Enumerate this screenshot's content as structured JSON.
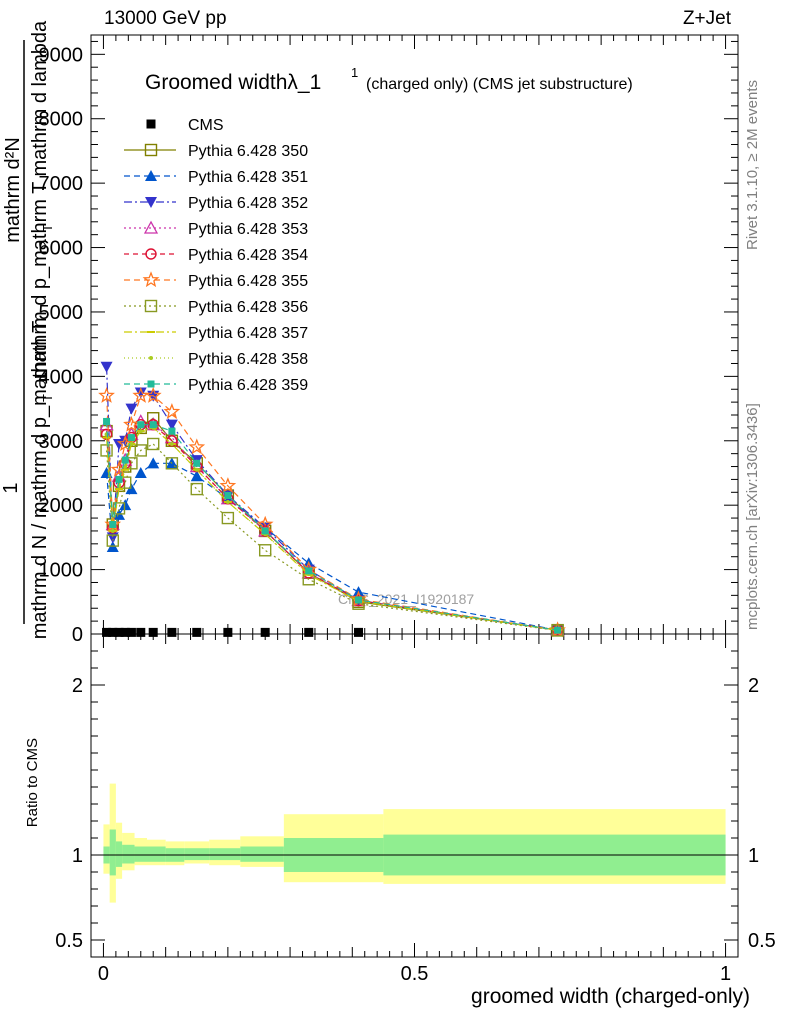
{
  "header": {
    "left": "13000 GeV pp",
    "right": "Z+Jet"
  },
  "side_labels": {
    "rivet": "Rivet 3.1.10, ≥ 2M events",
    "mcplots": "mcplots.cern.ch [arXiv:1306.3436]"
  },
  "colors": {
    "band_inner": "#90ee90",
    "band_outer": "#ffff99",
    "axis": "#000000"
  },
  "chart_data": [
    {
      "type": "line",
      "title": "Groomed widthλ_1",
      "title_sup": "1",
      "title_suffix": "(charged only) (CMS jet substructure)",
      "watermark": "CMS_2021_I1920187",
      "xlabel": "",
      "ylabel": {
        "top": "mathrm d²N",
        "top_right": "mathrm d p_mathrm T mathrm d lambda",
        "top_sub": "T",
        "bottom": "1",
        "bottom_right": "mathrm d N / mathrm d p_mathrm T",
        "bottom_sub": "T"
      },
      "xlim": [
        -0.02,
        1.02
      ],
      "ylim": [
        0,
        9300
      ],
      "yticks": [
        0,
        1000,
        2000,
        3000,
        4000,
        5000,
        6000,
        7000,
        8000,
        9000
      ],
      "ytick_labels": [
        "0",
        "1000",
        "2000",
        "3000",
        "4000",
        "5000",
        "6000",
        "7000",
        "8000",
        "9000"
      ],
      "legend_position": "top-left",
      "series": [
        {
          "name": "CMS",
          "color": "#000000",
          "marker": "square-filled",
          "dash": "none",
          "x": [
            0.005,
            0.015,
            0.025,
            0.035,
            0.045,
            0.06,
            0.08,
            0.11,
            0.15,
            0.2,
            0.26,
            0.33,
            0.41
          ],
          "y": [
            25,
            25,
            25,
            25,
            25,
            25,
            25,
            25,
            25,
            25,
            25,
            25,
            25
          ]
        },
        {
          "name": "Pythia 6.428 350",
          "color": "#808000",
          "marker": "square-open",
          "dash": "solid",
          "x": [
            0.005,
            0.015,
            0.025,
            0.035,
            0.045,
            0.06,
            0.08,
            0.11,
            0.15,
            0.2,
            0.26,
            0.33,
            0.41,
            0.73
          ],
          "y": [
            3150,
            1700,
            2300,
            2600,
            3000,
            3200,
            3350,
            3000,
            2650,
            2150,
            1600,
            950,
            500,
            60
          ]
        },
        {
          "name": "Pythia 6.428 351",
          "color": "#0055cc",
          "marker": "triangle-up-filled",
          "dash": "6,4",
          "x": [
            0.005,
            0.015,
            0.025,
            0.035,
            0.045,
            0.06,
            0.08,
            0.11,
            0.15,
            0.2,
            0.26,
            0.33,
            0.41,
            0.73
          ],
          "y": [
            2500,
            1350,
            1850,
            2000,
            2250,
            2500,
            2650,
            2650,
            2450,
            2100,
            1650,
            1100,
            650,
            60
          ]
        },
        {
          "name": "Pythia 6.428 352",
          "color": "#3333cc",
          "marker": "triangle-down-filled",
          "dash": "8,3,2,3",
          "x": [
            0.005,
            0.015,
            0.025,
            0.035,
            0.045,
            0.06,
            0.08,
            0.11,
            0.15,
            0.2,
            0.26,
            0.33,
            0.41,
            0.73
          ],
          "y": [
            4150,
            1500,
            2950,
            3000,
            3500,
            3750,
            3700,
            3250,
            2700,
            2150,
            1650,
            1000,
            520,
            60
          ]
        },
        {
          "name": "Pythia 6.428 353",
          "color": "#cc33aa",
          "marker": "triangle-up-open",
          "dash": "2,3",
          "x": [
            0.005,
            0.015,
            0.025,
            0.035,
            0.045,
            0.06,
            0.08,
            0.11,
            0.15,
            0.2,
            0.26,
            0.33,
            0.41,
            0.73
          ],
          "y": [
            3250,
            1700,
            2450,
            2700,
            3100,
            3300,
            3250,
            3050,
            2600,
            2100,
            1600,
            950,
            520,
            60
          ]
        },
        {
          "name": "Pythia 6.428 354",
          "color": "#dd1133",
          "marker": "circle-open",
          "dash": "5,4",
          "x": [
            0.005,
            0.015,
            0.025,
            0.035,
            0.045,
            0.06,
            0.08,
            0.11,
            0.15,
            0.2,
            0.26,
            0.33,
            0.41,
            0.73
          ],
          "y": [
            3100,
            1650,
            2350,
            2650,
            3050,
            3250,
            3250,
            3000,
            2600,
            2100,
            1600,
            950,
            520,
            60
          ]
        },
        {
          "name": "Pythia 6.428 355",
          "color": "#ff7722",
          "marker": "star-open",
          "dash": "6,4",
          "x": [
            0.005,
            0.015,
            0.025,
            0.035,
            0.045,
            0.06,
            0.08,
            0.11,
            0.15,
            0.2,
            0.26,
            0.33,
            0.41,
            0.73
          ],
          "y": [
            3700,
            1700,
            2550,
            2950,
            3250,
            3700,
            3700,
            3450,
            2900,
            2300,
            1700,
            1000,
            540,
            60
          ]
        },
        {
          "name": "Pythia 6.428 356",
          "color": "#889922",
          "marker": "square-open",
          "dash": "2,3",
          "x": [
            0.005,
            0.015,
            0.025,
            0.035,
            0.045,
            0.06,
            0.08,
            0.11,
            0.15,
            0.2,
            0.26,
            0.33,
            0.41,
            0.73
          ],
          "y": [
            2850,
            1450,
            1950,
            2350,
            2650,
            2850,
            2950,
            2650,
            2250,
            1800,
            1300,
            850,
            470,
            55
          ]
        },
        {
          "name": "Pythia 6.428 357",
          "color": "#cccc00",
          "marker": "dash-marker",
          "dash": "8,3,2,3",
          "x": [
            0.005,
            0.015,
            0.025,
            0.035,
            0.045,
            0.06,
            0.08,
            0.11,
            0.15,
            0.2,
            0.26,
            0.33,
            0.41,
            0.73
          ],
          "y": [
            3050,
            1600,
            2250,
            2550,
            2950,
            3150,
            3200,
            2950,
            2550,
            2050,
            1550,
            920,
            510,
            60
          ]
        },
        {
          "name": "Pythia 6.428 358",
          "color": "#aacc22",
          "marker": "dot",
          "dash": "1,3",
          "x": [
            0.005,
            0.015,
            0.025,
            0.035,
            0.045,
            0.06,
            0.08,
            0.11,
            0.15,
            0.2,
            0.26,
            0.33,
            0.41,
            0.73
          ],
          "y": [
            3100,
            1600,
            2300,
            2600,
            2950,
            3150,
            3200,
            2950,
            2550,
            2050,
            1550,
            930,
            510,
            60
          ]
        },
        {
          "name": "Pythia 6.428 359",
          "color": "#22bb99",
          "marker": "square-filled-small",
          "dash": "6,4",
          "x": [
            0.005,
            0.015,
            0.025,
            0.035,
            0.045,
            0.06,
            0.08,
            0.11,
            0.15,
            0.2,
            0.26,
            0.33,
            0.41,
            0.73
          ],
          "y": [
            3300,
            1700,
            2400,
            2700,
            3050,
            3250,
            3250,
            3150,
            2650,
            2150,
            1600,
            980,
            530,
            60
          ]
        }
      ]
    },
    {
      "type": "area",
      "title": "",
      "xlabel": "groomed width (charged-only)",
      "ylabel": "Ratio to CMS",
      "xlim": [
        -0.02,
        1.02
      ],
      "ylim": [
        0.4,
        2.3
      ],
      "yticks": [
        0.5,
        1,
        2
      ],
      "ytick_labels": [
        "0.5",
        "1",
        "2"
      ],
      "xticks": [
        0,
        0.5,
        1
      ],
      "xtick_labels": [
        "0",
        "0.5",
        "1"
      ],
      "reference_line": 1,
      "bins": [
        0,
        0.01,
        0.02,
        0.03,
        0.05,
        0.07,
        0.1,
        0.13,
        0.17,
        0.22,
        0.29,
        0.45,
        1.0
      ],
      "band_inner": {
        "lo": [
          0.95,
          0.88,
          0.93,
          0.95,
          0.96,
          0.96,
          0.96,
          0.97,
          0.97,
          0.96,
          0.9,
          0.88
        ],
        "hi": [
          1.05,
          1.15,
          1.08,
          1.06,
          1.05,
          1.05,
          1.04,
          1.04,
          1.04,
          1.05,
          1.1,
          1.12
        ]
      },
      "band_outer": {
        "lo": [
          0.89,
          0.72,
          0.86,
          0.91,
          0.94,
          0.94,
          0.94,
          0.95,
          0.94,
          0.93,
          0.84,
          0.83
        ],
        "hi": [
          1.18,
          1.42,
          1.19,
          1.13,
          1.1,
          1.09,
          1.08,
          1.08,
          1.09,
          1.11,
          1.24,
          1.27
        ]
      }
    }
  ]
}
